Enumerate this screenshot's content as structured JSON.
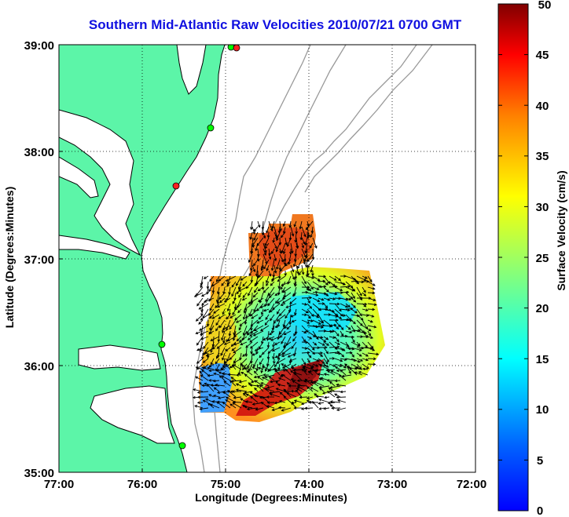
{
  "title": "Southern Mid-Atlantic Raw Velocities 2010/07/21 0700 GMT",
  "axes": {
    "xlabel": "Longitude (Degrees:Minutes)",
    "ylabel": "Latitude (Degrees:Minutes)",
    "x_ticks": [
      "77:00",
      "76:00",
      "75:00",
      "74:00",
      "73:00",
      "72:00"
    ],
    "y_ticks": [
      "39:00",
      "38:00",
      "37:00",
      "36:00",
      "35:00"
    ],
    "x_range": [
      -77,
      -72
    ],
    "y_range": [
      35,
      39
    ],
    "grid": "dotted"
  },
  "colorbar": {
    "label": "Surface Velocity (cm/s)",
    "ticks": [
      "50",
      "45",
      "40",
      "35",
      "30",
      "25",
      "20",
      "15",
      "10",
      "5",
      "0"
    ],
    "range": [
      0,
      50
    ],
    "colormap": "jet"
  },
  "colors": {
    "land": "#5cf5a8",
    "coastline": "#000000",
    "bathymetry": "#999999",
    "title": "#1010e0"
  },
  "stations": [
    {
      "status": "green"
    },
    {
      "status": "red"
    },
    {
      "status": "red"
    },
    {
      "status": "green"
    },
    {
      "status": "green"
    }
  ]
}
